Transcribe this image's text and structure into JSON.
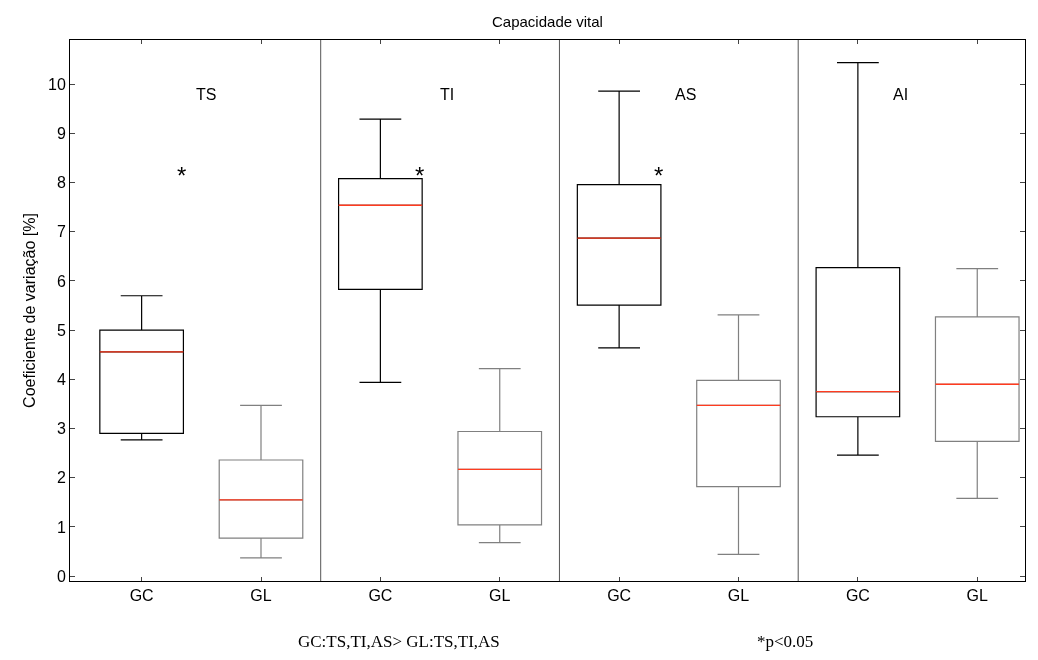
{
  "chart_data": {
    "type": "box",
    "title": "Capacidade vital",
    "ylabel": "Coeficiente de variação [%]",
    "categories": [
      "GC",
      "GL",
      "GC",
      "GL",
      "GC",
      "GL",
      "GC",
      "GL"
    ],
    "colors": [
      "#000000",
      "#808080",
      "#000000",
      "#808080",
      "#000000",
      "#808080",
      "#000000",
      "#808080"
    ],
    "boxes": [
      {
        "low": 2.77,
        "q1": 2.9,
        "median": 4.56,
        "q3": 5.0,
        "high": 5.7
      },
      {
        "low": 0.37,
        "q1": 0.77,
        "median": 1.55,
        "q3": 2.36,
        "high": 3.47
      },
      {
        "low": 3.94,
        "q1": 5.83,
        "median": 7.54,
        "q3": 8.08,
        "high": 9.29
      },
      {
        "low": 0.68,
        "q1": 1.04,
        "median": 2.17,
        "q3": 2.94,
        "high": 4.22
      },
      {
        "low": 4.64,
        "q1": 5.51,
        "median": 6.87,
        "q3": 7.96,
        "high": 9.86
      },
      {
        "low": 0.44,
        "q1": 1.82,
        "median": 3.47,
        "q3": 3.98,
        "high": 5.31
      },
      {
        "low": 2.46,
        "q1": 3.24,
        "median": 3.75,
        "q3": 6.27,
        "high": 10.44
      },
      {
        "low": 1.58,
        "q1": 2.74,
        "median": 3.9,
        "q3": 5.27,
        "high": 6.25
      }
    ],
    "ylim": [
      -0.1,
      10.9
    ],
    "yticks": [
      0,
      1,
      2,
      3,
      4,
      5,
      6,
      7,
      8,
      9,
      10
    ],
    "annotations": [
      "TS",
      "TI",
      "AS",
      "AI",
      "*",
      "*",
      "*",
      "GC:TS,TI,AS> GL:TS,TI,AS",
      "*p<0.05"
    ]
  }
}
